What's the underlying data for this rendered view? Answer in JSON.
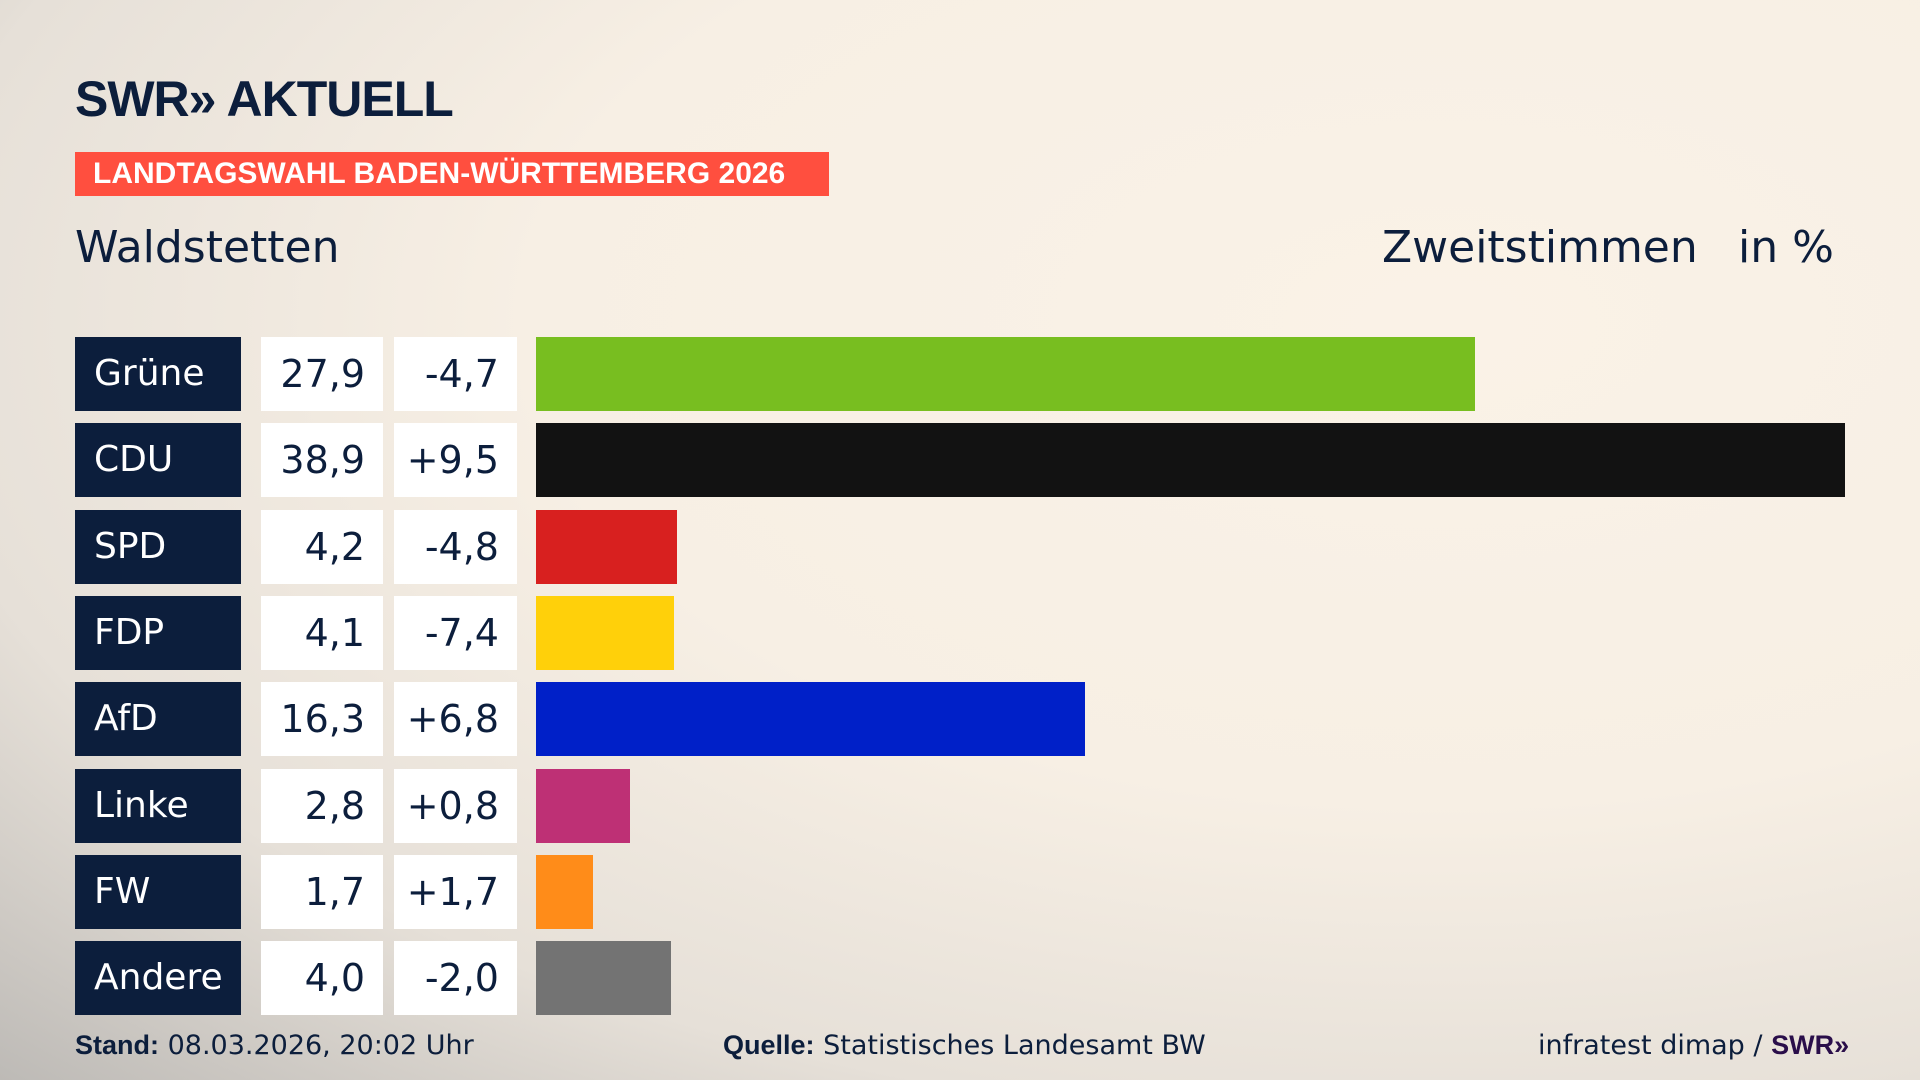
{
  "brand": {
    "logo": "SWR» AKTUELL"
  },
  "banner": "LANDTAGSWAHL BADEN-WÜRTTEMBERG 2026",
  "location": "Waldstetten",
  "header": {
    "metric": "Zweitstimmen",
    "unit": "in %"
  },
  "chart_data": {
    "type": "bar",
    "orientation": "horizontal",
    "categories": [
      "Grüne",
      "CDU",
      "SPD",
      "FDP",
      "AfD",
      "Linke",
      "FW",
      "Andere"
    ],
    "values": [
      27.9,
      38.9,
      4.2,
      4.1,
      16.3,
      2.8,
      1.7,
      4.0
    ],
    "value_labels": [
      "27,9",
      "38,9",
      "4,2",
      "4,1",
      "16,3",
      "2,8",
      "1,7",
      "4,0"
    ],
    "changes": [
      -4.7,
      9.5,
      -4.8,
      -7.4,
      6.8,
      0.8,
      1.7,
      -2.0
    ],
    "change_labels": [
      "-4,7",
      "+9,5",
      "-4,8",
      "-7,4",
      "+6,8",
      "+0,8",
      "+1,7",
      "-2,0"
    ],
    "colors": [
      "#78be20",
      "#121212",
      "#d8201f",
      "#ffd00a",
      "#0020c8",
      "#be3075",
      "#ff8c19",
      "#737373"
    ]
  },
  "footer": {
    "stand_label": "Stand:",
    "stand_value": "08.03.2026, 20:02 Uhr",
    "source_label": "Quelle:",
    "source_value": "Statistisches Landesamt BW",
    "credit": "infratest dimap /",
    "credit_logo": "SWR»"
  }
}
